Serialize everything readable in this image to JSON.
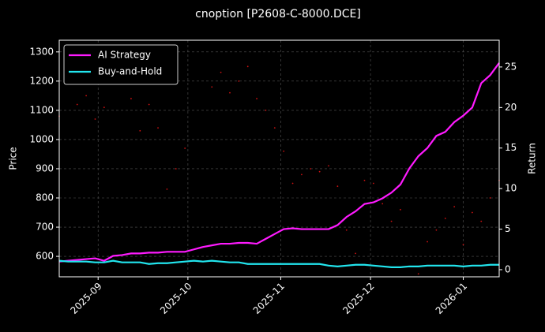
{
  "chart_data": {
    "type": "line",
    "title": "cnoption [P2608-C-8000.DCE]",
    "y_label": "Price",
    "y2_label": "Return",
    "xlim": [
      0,
      49
    ],
    "xticks": [
      {
        "value": 4.33,
        "label": "2025-09"
      },
      {
        "value": 14.33,
        "label": "2025-10"
      },
      {
        "value": 24.67,
        "label": "2025-11"
      },
      {
        "value": 34.67,
        "label": "2025-12"
      },
      {
        "value": 45,
        "label": "2026-01"
      }
    ],
    "ylim": [
      530,
      1340
    ],
    "yticks": [
      600,
      700,
      800,
      900,
      1000,
      1100,
      1200,
      1300
    ],
    "y2lim": [
      -0.88,
      28.3
    ],
    "y2ticks": [
      0,
      5,
      10,
      15,
      20,
      25
    ],
    "grid": true,
    "legend": "upper left",
    "series": [
      {
        "name": "AI Strategy",
        "color": "#ff1aff",
        "axis": "y2",
        "values": [
          1.0,
          1.1,
          1.2,
          1.3,
          1.4,
          1.1,
          1.7,
          1.8,
          2.0,
          2.0,
          2.1,
          2.1,
          2.2,
          2.2,
          2.2,
          2.5,
          2.8,
          3.0,
          3.2,
          3.2,
          3.3,
          3.3,
          3.2,
          3.8,
          4.4,
          5.0,
          5.1,
          5.0,
          5.0,
          5.0,
          5.0,
          5.5,
          6.5,
          7.2,
          8.1,
          8.3,
          8.8,
          9.5,
          10.5,
          12.5,
          14.0,
          15.0,
          16.5,
          17.0,
          18.2,
          19.0,
          20.0,
          23.0,
          24.0,
          25.5
        ]
      },
      {
        "name": "Buy-and-Hold",
        "color": "#22e5ee",
        "axis": "y2",
        "values": [
          1.1,
          1.0,
          1.0,
          1.0,
          0.9,
          0.9,
          1.1,
          0.9,
          0.9,
          0.9,
          0.7,
          0.8,
          0.8,
          0.9,
          1.0,
          1.1,
          1.0,
          1.1,
          1.0,
          0.9,
          0.9,
          0.7,
          0.7,
          0.7,
          0.7,
          0.7,
          0.7,
          0.7,
          0.7,
          0.7,
          0.5,
          0.4,
          0.5,
          0.6,
          0.6,
          0.5,
          0.4,
          0.3,
          0.3,
          0.4,
          0.4,
          0.5,
          0.5,
          0.5,
          0.5,
          0.4,
          0.5,
          0.5,
          0.6,
          0.6
        ]
      },
      {
        "name": "Price",
        "color": "#cc1111",
        "axis": "y",
        "points": true,
        "values": [
          1080,
          null,
          1120,
          1150,
          1070,
          1110,
          null,
          null,
          1140,
          1030,
          1120,
          1040,
          830,
          900,
          970,
          null,
          null,
          1180,
          1230,
          1160,
          1200,
          1250,
          1140,
          1100,
          1040,
          960,
          850,
          880,
          900,
          890,
          910,
          840,
          690,
          610,
          860,
          850,
          780,
          720,
          760,
          null,
          540,
          650,
          690,
          730,
          770,
          640,
          750,
          720,
          800,
          860
        ]
      }
    ]
  }
}
